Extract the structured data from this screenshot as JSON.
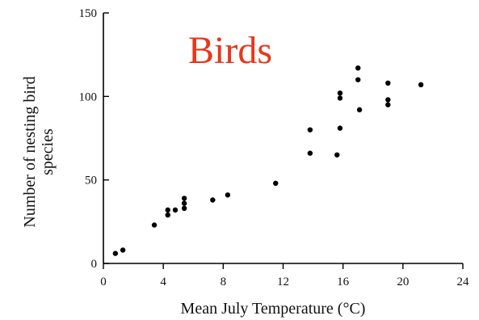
{
  "chart_data": {
    "type": "scatter",
    "annotation": "Birds",
    "xlabel": "Mean July Temperature (°C)",
    "ylabel": [
      "Number of nesting bird",
      "species"
    ],
    "xlim": [
      0,
      24
    ],
    "ylim": [
      0,
      150
    ],
    "x_ticks": [
      0,
      4,
      8,
      12,
      16,
      20,
      24
    ],
    "y_ticks": [
      0,
      50,
      100,
      150
    ],
    "grid": false,
    "colors": {
      "points": "#000000",
      "axes": "#000000",
      "annotation": "#e8361a"
    },
    "points": [
      {
        "x": 0.8,
        "y": 6
      },
      {
        "x": 1.3,
        "y": 8
      },
      {
        "x": 3.4,
        "y": 23
      },
      {
        "x": 4.3,
        "y": 29
      },
      {
        "x": 4.3,
        "y": 32
      },
      {
        "x": 4.8,
        "y": 32
      },
      {
        "x": 5.4,
        "y": 33
      },
      {
        "x": 5.4,
        "y": 36
      },
      {
        "x": 5.4,
        "y": 39
      },
      {
        "x": 7.3,
        "y": 38
      },
      {
        "x": 8.3,
        "y": 41
      },
      {
        "x": 11.5,
        "y": 48
      },
      {
        "x": 13.8,
        "y": 66
      },
      {
        "x": 13.8,
        "y": 80
      },
      {
        "x": 15.6,
        "y": 65
      },
      {
        "x": 15.8,
        "y": 81
      },
      {
        "x": 15.8,
        "y": 99
      },
      {
        "x": 15.8,
        "y": 102
      },
      {
        "x": 17.0,
        "y": 110
      },
      {
        "x": 17.0,
        "y": 117
      },
      {
        "x": 17.1,
        "y": 92
      },
      {
        "x": 19.0,
        "y": 95
      },
      {
        "x": 19.0,
        "y": 98
      },
      {
        "x": 19.0,
        "y": 108
      },
      {
        "x": 21.2,
        "y": 107
      }
    ]
  }
}
